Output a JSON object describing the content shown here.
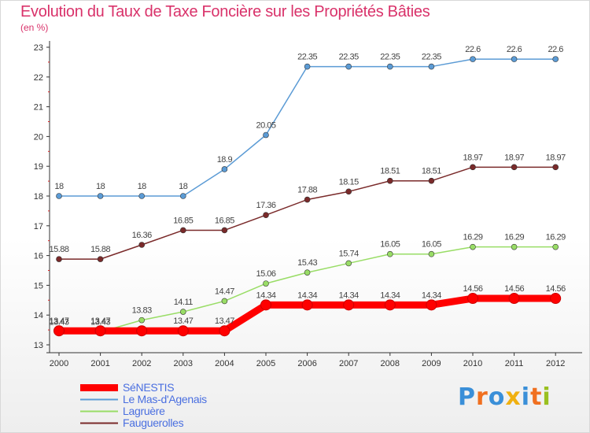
{
  "title": "Evolution du Taux de Taxe Foncière sur les Propriétés Bâties",
  "subtitle": "(en %)",
  "logo": {
    "text": "Proxiti",
    "colors": [
      "#3a8fd8",
      "#f07020",
      "#3a8fd8",
      "#f0b010",
      "#3a8fd8",
      "#f07020",
      "#9ac020"
    ]
  },
  "chart_data": {
    "type": "line",
    "x": [
      "2000",
      "2001",
      "2002",
      "2003",
      "2004",
      "2005",
      "2006",
      "2007",
      "2008",
      "2009",
      "2010",
      "2011",
      "2012"
    ],
    "ylim": [
      13,
      23
    ],
    "yticks": [
      "13",
      "14",
      "15",
      "16",
      "17",
      "18",
      "19",
      "20",
      "21",
      "22",
      "23"
    ],
    "grid": false,
    "legend_position": "bottom-left",
    "series": [
      {
        "name": "SéNESTIS",
        "color": "#ff0000",
        "values": [
          13.47,
          13.47,
          13.47,
          13.47,
          13.47,
          14.34,
          14.34,
          14.34,
          14.34,
          14.34,
          14.56,
          14.56,
          14.56
        ],
        "labels": [
          "13.47",
          "13.47",
          "",
          "13.47",
          "13.47",
          "14.34",
          "14.34",
          "14.34",
          "14.34",
          "14.34",
          "14.56",
          "14.56",
          "14.56"
        ]
      },
      {
        "name": "Le Mas-d'Agenais",
        "color": "#5b9bd5",
        "values": [
          18,
          18,
          18,
          18,
          18.9,
          20.05,
          22.35,
          22.35,
          22.35,
          22.35,
          22.6,
          22.6,
          22.6
        ],
        "labels": [
          "18",
          "18",
          "18",
          "18",
          "18.9",
          "20.05",
          "22.35",
          "22.35",
          "22.35",
          "22.35",
          "22.6",
          "22.6",
          "22.6"
        ]
      },
      {
        "name": "Lagruère",
        "color": "#99dd66",
        "values": [
          13.43,
          13.43,
          13.83,
          14.11,
          14.47,
          15.06,
          15.43,
          15.74,
          16.05,
          16.05,
          16.29,
          16.29,
          16.29
        ],
        "labels": [
          "13.43",
          "13.43",
          "13.83",
          "14.11",
          "14.47",
          "15.06",
          "15.43",
          "15.74",
          "16.05",
          "16.05",
          "16.29",
          "16.29",
          "16.29"
        ]
      },
      {
        "name": "Fauguerolles",
        "color": "#7a2a2a",
        "values": [
          15.88,
          15.88,
          16.36,
          16.85,
          16.85,
          17.36,
          17.88,
          18.15,
          18.51,
          18.51,
          18.97,
          18.97,
          18.97
        ],
        "labels": [
          "15.88",
          "15.88",
          "16.36",
          "16.85",
          "16.85",
          "17.36",
          "17.88",
          "18.15",
          "18.51",
          "18.51",
          "18.97",
          "18.97",
          "18.97"
        ]
      }
    ]
  }
}
